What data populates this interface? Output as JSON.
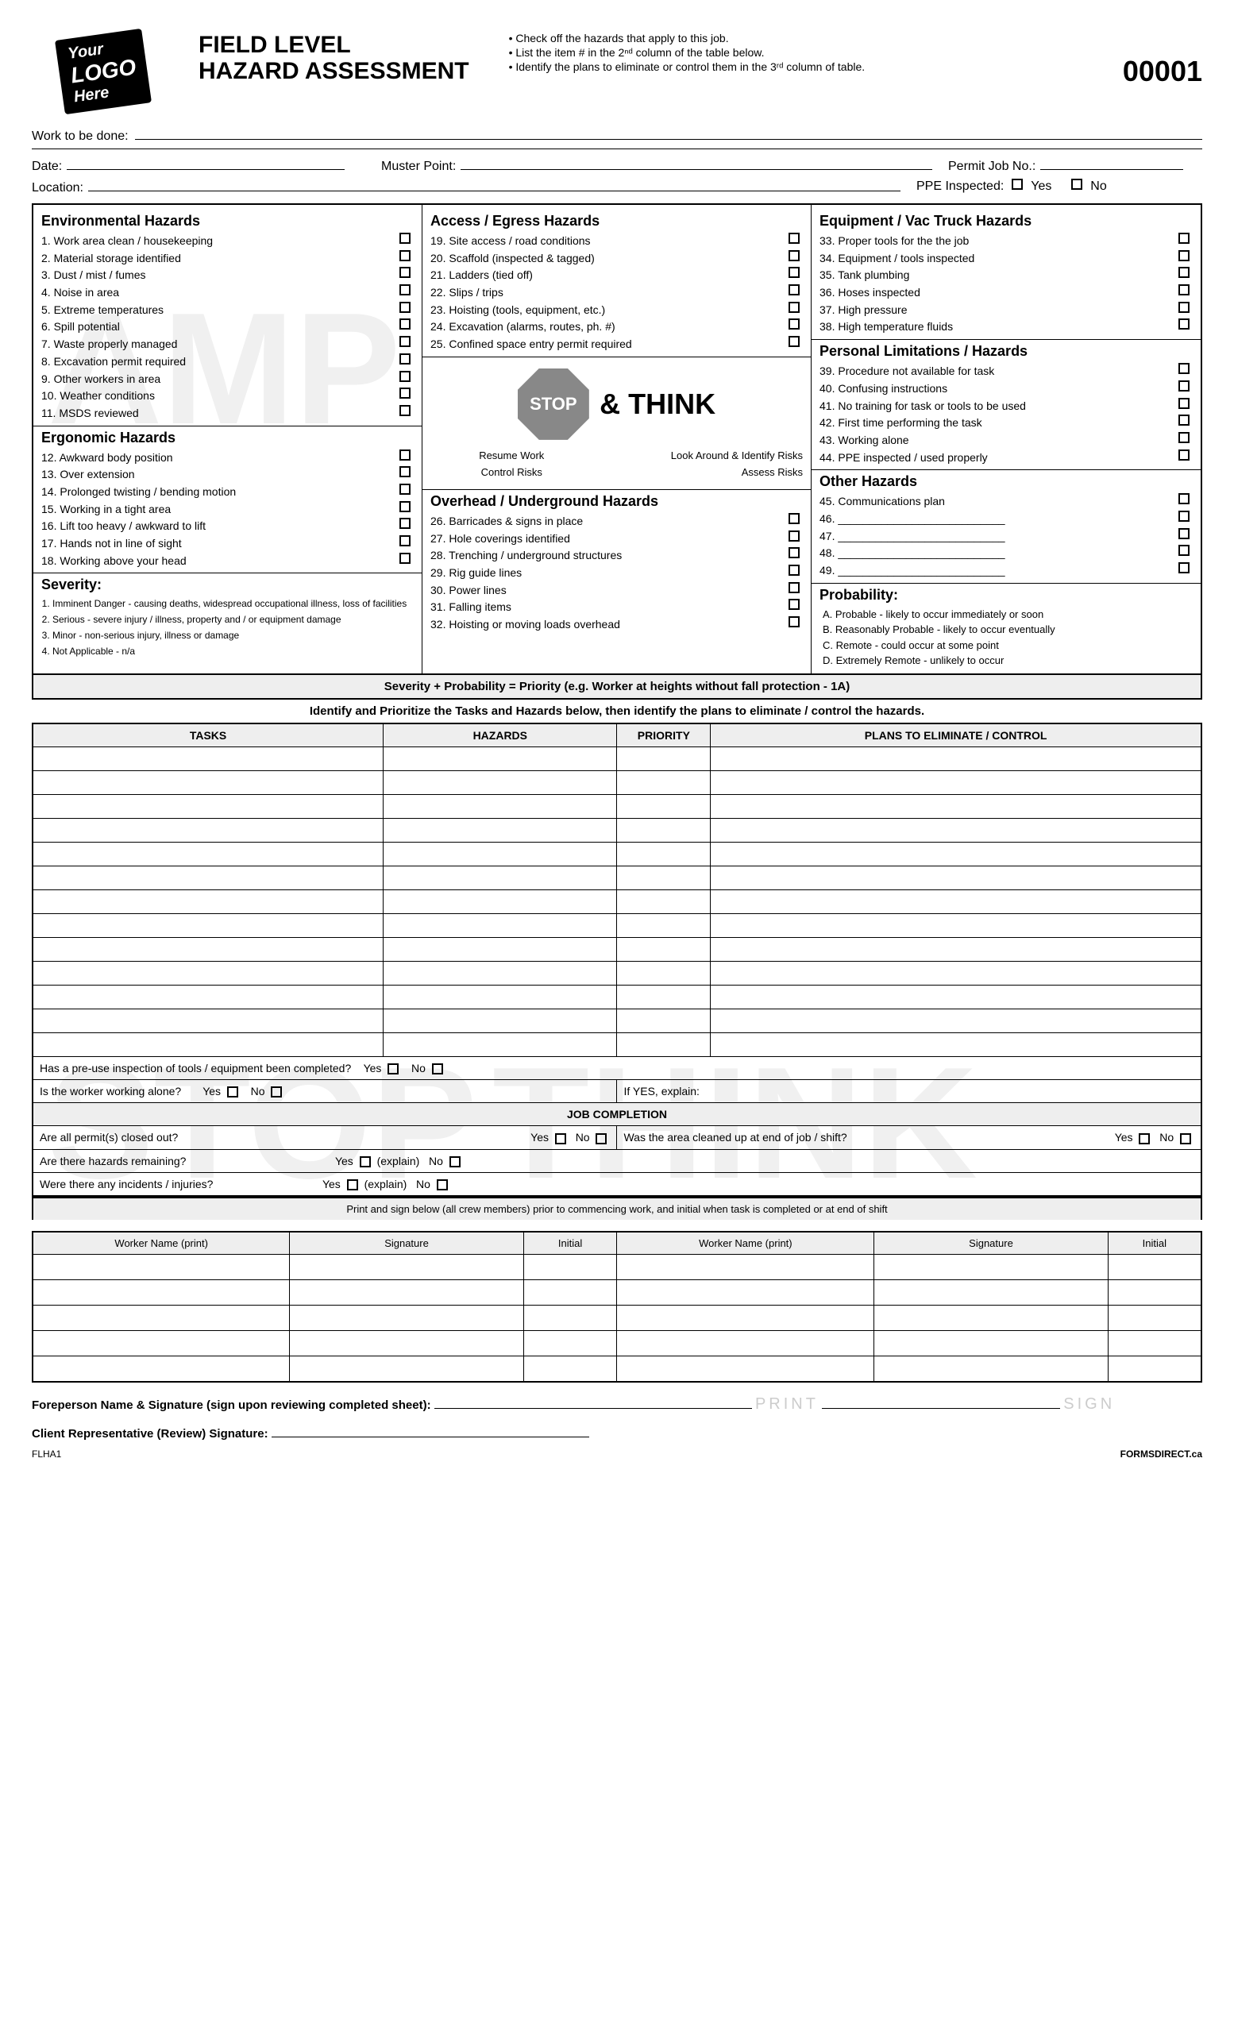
{
  "logo": {
    "line1": "Your",
    "line2": "LOGO",
    "line3": "Here"
  },
  "title": {
    "l1": "FIELD LEVEL",
    "l2": "HAZARD ASSESSMENT"
  },
  "instructions": [
    "• Check off the hazards that apply to this job.",
    "• List the item # in the 2ⁿᵈ column of the table below.",
    "• Identify the plans to eliminate or control them in the 3ʳᵈ column of table."
  ],
  "form_number": "00001",
  "fields": {
    "work": "Work to be done:",
    "date": "Date:",
    "muster": "Muster Point:",
    "permit": "Permit Job No.:",
    "location": "Location:",
    "ppe": "PPE Inspected:",
    "yes": "Yes",
    "no": "No"
  },
  "sections": {
    "env": {
      "title": "Environmental Hazards",
      "items": [
        "1. Work area clean / housekeeping",
        "2. Material storage identified",
        "3. Dust / mist / fumes",
        "4. Noise in area",
        "5. Extreme temperatures",
        "6. Spill potential",
        "7. Waste properly managed",
        "8. Excavation permit required",
        "9. Other workers in area",
        "10. Weather conditions",
        "11. MSDS reviewed"
      ]
    },
    "ergo": {
      "title": "Ergonomic Hazards",
      "items": [
        "12. Awkward body position",
        "13. Over extension",
        "14. Prolonged twisting / bending motion",
        "15. Working in a tight area",
        "16. Lift too heavy / awkward to lift",
        "17. Hands not in line of sight",
        "18. Working above your head"
      ]
    },
    "severity": {
      "title": "Severity:",
      "items": [
        "Imminent Danger - causing deaths, widespread occupational illness, loss of facilities",
        "Serious - severe injury / illness, property and / or equipment damage",
        "Minor - non-serious injury, illness or damage",
        "Not Applicable - n/a"
      ]
    },
    "access": {
      "title": "Access / Egress Hazards",
      "items": [
        "19. Site access / road conditions",
        "20. Scaffold (inspected & tagged)",
        "21. Ladders (tied off)",
        "22. Slips / trips",
        "23. Hoisting (tools, equipment, etc.)",
        "24. Excavation (alarms, routes, ph. #)",
        "25. Confined space entry permit required"
      ]
    },
    "stopthink": {
      "stop": "STOP",
      "think": "& THINK",
      "c1": "Resume Work",
      "c2": "Look Around & Identify Risks",
      "c3": "Control Risks",
      "c4": "Assess Risks"
    },
    "overhead": {
      "title": "Overhead / Underground Hazards",
      "items": [
        "26. Barricades & signs in place",
        "27. Hole coverings identified",
        "28. Trenching / underground structures",
        "29. Rig guide lines",
        "30. Power lines",
        "31. Falling items",
        "32. Hoisting or moving loads overhead"
      ]
    },
    "equip": {
      "title": "Equipment / Vac Truck Hazards",
      "items": [
        "33. Proper tools for the the job",
        "34. Equipment / tools inspected",
        "35. Tank plumbing",
        "36. Hoses inspected",
        "37. High pressure",
        "38. High temperature fluids"
      ]
    },
    "personal": {
      "title": "Personal Limitations / Hazards",
      "items": [
        "39. Procedure not available for task",
        "40. Confusing instructions",
        "41. No training for task or tools to be used",
        "42. First time performing the task",
        "43. Working alone",
        "44. PPE inspected / used properly"
      ]
    },
    "other": {
      "title": "Other Hazards",
      "items": [
        "45. Communications plan",
        "46. ___________________________",
        "47. ___________________________",
        "48. ___________________________",
        "49. ___________________________"
      ]
    },
    "prob": {
      "title": "Probability:",
      "items": [
        "A. Probable - likely to occur immediately or soon",
        "B. Reasonably Probable - likely to occur eventually",
        "C. Remote - could occur at some point",
        "D. Extremely Remote - unlikely to occur"
      ]
    }
  },
  "priority_formula": "Severity + Probability = Priority (e.g. Worker at heights without fall protection - 1A)",
  "identify_text": "Identify and Prioritize the Tasks and Hazards below, then identify the plans to eliminate / control the hazards.",
  "task_headers": [
    "TASKS",
    "HAZARDS",
    "PRIORITY",
    "PLANS TO ELIMINATE / CONTROL"
  ],
  "task_rows": 13,
  "questions": {
    "preuse": "Has a pre-use inspection of tools / equipment been completed?",
    "alone": "Is the worker working alone?",
    "ifyes": "If YES, explain:",
    "jobcomp": "JOB COMPLETION",
    "permits": "Are all permit(s) closed out?",
    "cleaned": "Was the area cleaned up at end of job / shift?",
    "hazrem": "Are there hazards remaining?",
    "incidents": "Were there any incidents / injuries?",
    "yes": "Yes",
    "no": "No",
    "explain": "(explain)"
  },
  "sign": {
    "caption": "Print and sign below (all crew members) prior to commencing work, and initial when task is completed or at end of shift",
    "headers": [
      "Worker Name (print)",
      "Signature",
      "Initial",
      "Worker Name (print)",
      "Signature",
      "Initial"
    ],
    "rows": 5
  },
  "footer": {
    "fore": "Foreperson Name & Signature (sign upon reviewing completed sheet):",
    "client": "Client Representative (Review) Signature:",
    "print_ph": "PRINT",
    "sign_ph": "SIGN",
    "code": "FLHA1",
    "brand": "FORMSDIRECT.ca"
  }
}
